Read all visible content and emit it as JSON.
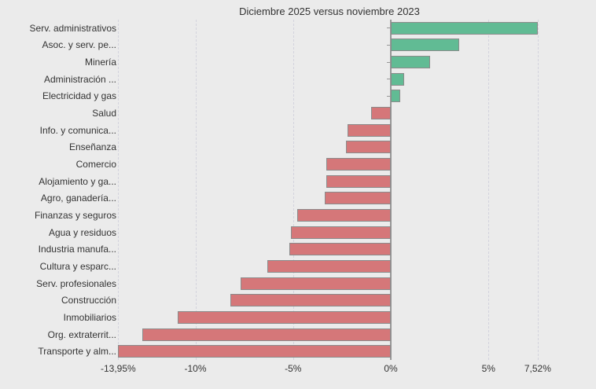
{
  "title": "Diciembre 2025 versus noviembre 2023",
  "chart_data": {
    "type": "bar",
    "orientation": "horizontal",
    "title": "Diciembre 2025 versus noviembre 2023",
    "xlabel": "",
    "ylabel": "",
    "xlim": [
      -13.95,
      10.1
    ],
    "grid": "dashed-vertical",
    "legend": "none",
    "categories": [
      "Serv. administrativos",
      "Asoc. y serv. pe...",
      "Minería",
      "Administración ...",
      "Electricidad y gas",
      "Salud",
      "Info. y comunica...",
      "Enseñanza",
      "Comercio",
      "Alojamiento y ga...",
      "Agro, ganadería...",
      "Finanzas y seguros",
      "Agua y residuos",
      "Industria manufa...",
      "Cultura y esparc...",
      "Serv. profesionales",
      "Construcción",
      "Inmobiliarios",
      "Org. extraterrit...",
      "Transporte y alm..."
    ],
    "values": [
      7.52,
      3.5,
      2.0,
      0.7,
      0.5,
      -1.0,
      -2.2,
      -2.3,
      -3.3,
      -3.3,
      -3.4,
      -4.8,
      -5.1,
      -5.2,
      -6.3,
      -7.7,
      -8.2,
      -10.9,
      -12.7,
      -13.95
    ],
    "x_ticks": [
      {
        "label": "-13,95%",
        "value": -13.95
      },
      {
        "label": "-10%",
        "value": -10
      },
      {
        "label": "-5%",
        "value": -5
      },
      {
        "label": "0%",
        "value": 0
      },
      {
        "label": "5%",
        "value": 5
      },
      {
        "label": "7,52%",
        "value": 7.52
      }
    ],
    "colors": {
      "positive": "#61bb94",
      "negative": "#d57779",
      "bar_border": "#8b8b8b",
      "background": "#ebebeb",
      "gridline": "#d3d3dd",
      "axis": "#979797",
      "text": "#333333"
    }
  }
}
